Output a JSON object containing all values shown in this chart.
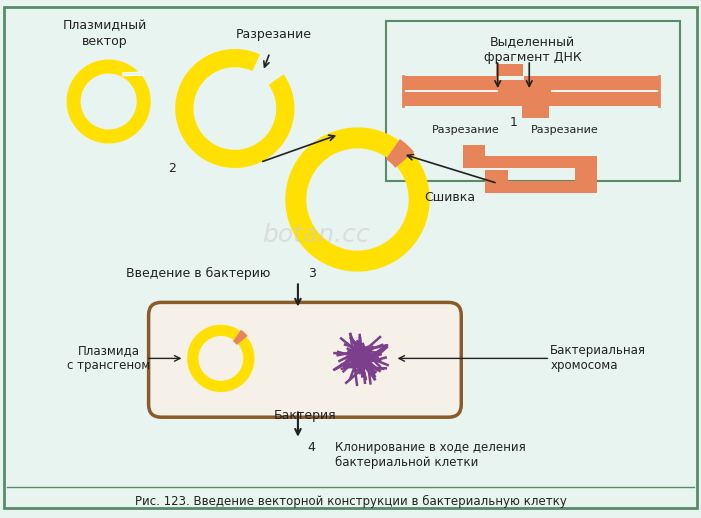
{
  "title": "Рис. 123. Введение векторной конструкции в бактериальную клетку",
  "bg_color": "#e8f4f0",
  "border_color": "#5a8a6a",
  "yellow": "#FFE000",
  "orange": "#E8845A",
  "purple": "#7B3F8C",
  "brown": "#8B5A2B",
  "text_color": "#222222",
  "label_plasmid_vector": "Плазмидный\nвектор",
  "label_razrezanie_top": "Разрезание",
  "label_videlenny": "Выделенный\nфрагмент ДНК",
  "label_razrezanie_left": "Разрезание",
  "label_razrezanie_right": "Разрезание",
  "label_num1": "1",
  "label_num2": "2",
  "label_num3": "3",
  "label_num4": "4",
  "label_sshivka": "Сшивка",
  "label_vvedenie": "Введение в бактерию",
  "label_bacteria": "Бактерия",
  "label_plazmida_transgenom": "Плазмида\nс трансгеном",
  "label_bacterial_chrom": "Бактериальная\nхромосома",
  "label_klonirovanie": "Клонирование в ходе деления\nбактериальной клетки",
  "label_botan": "botan.cc"
}
